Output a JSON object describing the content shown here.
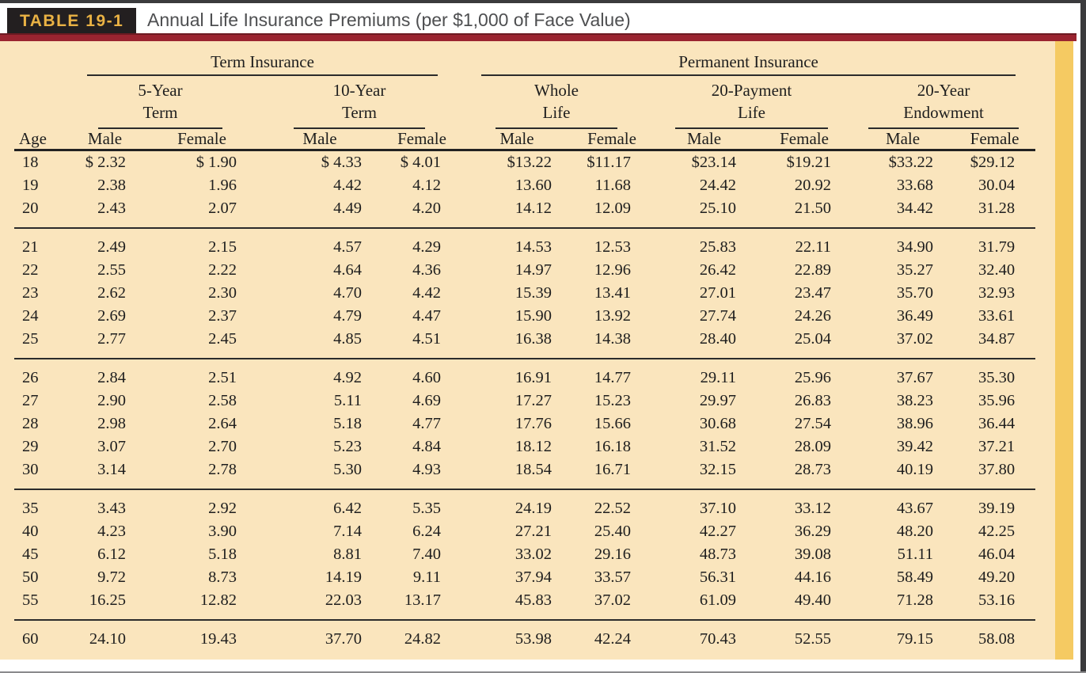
{
  "header": {
    "table_label": "TABLE 19-1",
    "title": "Annual Life Insurance Premiums (per $1,000 of Face Value)"
  },
  "table": {
    "group_headers": [
      {
        "label": "Term Insurance"
      },
      {
        "label": "Permanent Insurance"
      }
    ],
    "sub_headers": [
      {
        "line1": "5-Year",
        "line2": "Term"
      },
      {
        "line1": "10-Year",
        "line2": "Term"
      },
      {
        "line1": "Whole",
        "line2": "Life"
      },
      {
        "line1": "20-Payment",
        "line2": "Life"
      },
      {
        "line1": "20-Year",
        "line2": "Endowment"
      }
    ],
    "column_headers": [
      "Age",
      "Male",
      "Female",
      "Male",
      "Female",
      "Male",
      "Female",
      "Male",
      "Female",
      "Male",
      "Female"
    ],
    "row_groups": [
      [
        [
          "18",
          "$ 2.32",
          "$ 1.90",
          "$ 4.33",
          "$ 4.01",
          "$13.22",
          "$11.17",
          "$23.14",
          "$19.21",
          "$33.22",
          "$29.12"
        ],
        [
          "19",
          "2.38",
          "1.96",
          "4.42",
          "4.12",
          "13.60",
          "11.68",
          "24.42",
          "20.92",
          "33.68",
          "30.04"
        ],
        [
          "20",
          "2.43",
          "2.07",
          "4.49",
          "4.20",
          "14.12",
          "12.09",
          "25.10",
          "21.50",
          "34.42",
          "31.28"
        ]
      ],
      [
        [
          "21",
          "2.49",
          "2.15",
          "4.57",
          "4.29",
          "14.53",
          "12.53",
          "25.83",
          "22.11",
          "34.90",
          "31.79"
        ],
        [
          "22",
          "2.55",
          "2.22",
          "4.64",
          "4.36",
          "14.97",
          "12.96",
          "26.42",
          "22.89",
          "35.27",
          "32.40"
        ],
        [
          "23",
          "2.62",
          "2.30",
          "4.70",
          "4.42",
          "15.39",
          "13.41",
          "27.01",
          "23.47",
          "35.70",
          "32.93"
        ],
        [
          "24",
          "2.69",
          "2.37",
          "4.79",
          "4.47",
          "15.90",
          "13.92",
          "27.74",
          "24.26",
          "36.49",
          "33.61"
        ],
        [
          "25",
          "2.77",
          "2.45",
          "4.85",
          "4.51",
          "16.38",
          "14.38",
          "28.40",
          "25.04",
          "37.02",
          "34.87"
        ]
      ],
      [
        [
          "26",
          "2.84",
          "2.51",
          "4.92",
          "4.60",
          "16.91",
          "14.77",
          "29.11",
          "25.96",
          "37.67",
          "35.30"
        ],
        [
          "27",
          "2.90",
          "2.58",
          "5.11",
          "4.69",
          "17.27",
          "15.23",
          "29.97",
          "26.83",
          "38.23",
          "35.96"
        ],
        [
          "28",
          "2.98",
          "2.64",
          "5.18",
          "4.77",
          "17.76",
          "15.66",
          "30.68",
          "27.54",
          "38.96",
          "36.44"
        ],
        [
          "29",
          "3.07",
          "2.70",
          "5.23",
          "4.84",
          "18.12",
          "16.18",
          "31.52",
          "28.09",
          "39.42",
          "37.21"
        ],
        [
          "30",
          "3.14",
          "2.78",
          "5.30",
          "4.93",
          "18.54",
          "16.71",
          "32.15",
          "28.73",
          "40.19",
          "37.80"
        ]
      ],
      [
        [
          "35",
          "3.43",
          "2.92",
          "6.42",
          "5.35",
          "24.19",
          "22.52",
          "37.10",
          "33.12",
          "43.67",
          "39.19"
        ],
        [
          "40",
          "4.23",
          "3.90",
          "7.14",
          "6.24",
          "27.21",
          "25.40",
          "42.27",
          "36.29",
          "48.20",
          "42.25"
        ],
        [
          "45",
          "6.12",
          "5.18",
          "8.81",
          "7.40",
          "33.02",
          "29.16",
          "48.73",
          "39.08",
          "51.11",
          "46.04"
        ],
        [
          "50",
          "9.72",
          "8.73",
          "14.19",
          "9.11",
          "37.94",
          "33.57",
          "56.31",
          "44.16",
          "58.49",
          "49.20"
        ],
        [
          "55",
          "16.25",
          "12.82",
          "22.03",
          "13.17",
          "45.83",
          "37.02",
          "61.09",
          "49.40",
          "71.28",
          "53.16"
        ]
      ],
      [
        [
          "60",
          "24.10",
          "19.43",
          "37.70",
          "24.82",
          "53.98",
          "42.24",
          "70.43",
          "52.55",
          "79.15",
          "58.08"
        ]
      ]
    ]
  },
  "colors": {
    "sheet_cream": "#fae5bd",
    "gold_stripe": "#f5ca62",
    "maroon_bar": "#9a2430",
    "label_box_black": "#231f20",
    "label_gold_text": "#eab244",
    "title_gray": "#4e4f51"
  }
}
